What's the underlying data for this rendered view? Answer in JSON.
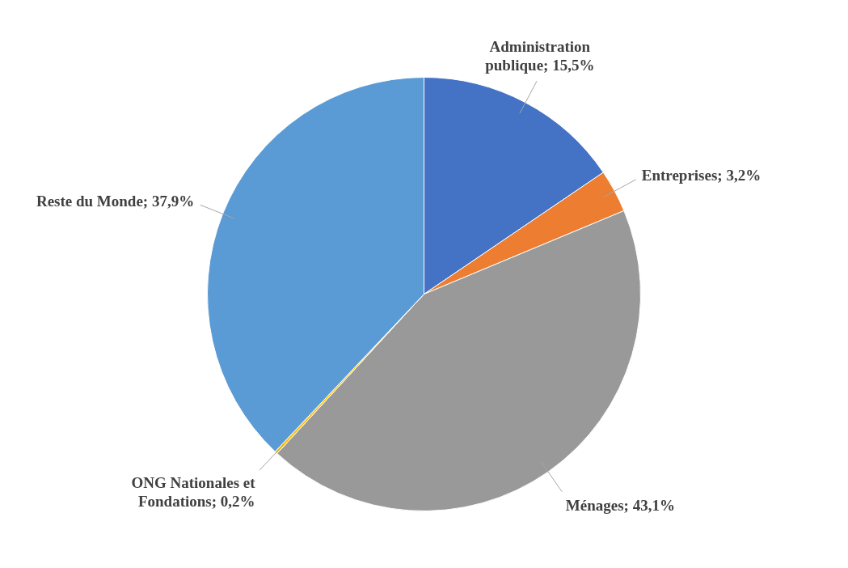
{
  "chart_data": {
    "type": "pie",
    "categories": [
      "Administration publique",
      "Entreprises",
      "Ménages",
      "ONG Nationales et Fondations",
      "Reste du Monde"
    ],
    "values": [
      15.5,
      3.2,
      43.1,
      0.2,
      37.9
    ],
    "value_labels": [
      "15,5%",
      "3,2%",
      "43,1%",
      "0,2%",
      "37,9%"
    ],
    "colors": [
      "#4472c4",
      "#ed7d31",
      "#999999",
      "#ffc000",
      "#5b9bd5"
    ],
    "legend": false
  }
}
